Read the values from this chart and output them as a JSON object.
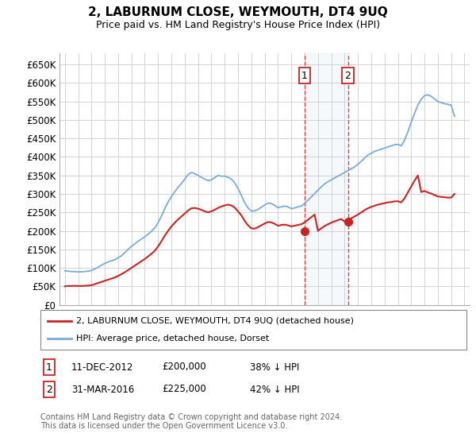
{
  "title": "2, LABURNUM CLOSE, WEYMOUTH, DT4 9UQ",
  "subtitle": "Price paid vs. HM Land Registry's House Price Index (HPI)",
  "ylabel_ticks": [
    "£0",
    "£50K",
    "£100K",
    "£150K",
    "£200K",
    "£250K",
    "£300K",
    "£350K",
    "£400K",
    "£450K",
    "£500K",
    "£550K",
    "£600K",
    "£650K"
  ],
  "ylim": [
    0,
    680000
  ],
  "ytick_values": [
    0,
    50000,
    100000,
    150000,
    200000,
    250000,
    300000,
    350000,
    400000,
    450000,
    500000,
    550000,
    600000,
    650000
  ],
  "hpi_color": "#7aabdb",
  "price_color": "#cc2222",
  "background_color": "#ffffff",
  "grid_color": "#cccccc",
  "marker1_price": 200000,
  "marker2_price": 225000,
  "transaction1": {
    "label": "1",
    "date": "11-DEC-2012",
    "price": "£200,000",
    "pct": "38% ↓ HPI"
  },
  "transaction2": {
    "label": "2",
    "date": "31-MAR-2016",
    "price": "£225,000",
    "pct": "42% ↓ HPI"
  },
  "legend_line1": "2, LABURNUM CLOSE, WEYMOUTH, DT4 9UQ (detached house)",
  "legend_line2": "HPI: Average price, detached house, Dorset",
  "footer": "Contains HM Land Registry data © Crown copyright and database right 2024.\nThis data is licensed under the Open Government Licence v3.0.",
  "hpi_data": {
    "years": [
      1995,
      1995.25,
      1995.5,
      1995.75,
      1996,
      1996.25,
      1996.5,
      1996.75,
      1997,
      1997.25,
      1997.5,
      1997.75,
      1998,
      1998.25,
      1998.5,
      1998.75,
      1999,
      1999.25,
      1999.5,
      1999.75,
      2000,
      2000.25,
      2000.5,
      2000.75,
      2001,
      2001.25,
      2001.5,
      2001.75,
      2002,
      2002.25,
      2002.5,
      2002.75,
      2003,
      2003.25,
      2003.5,
      2003.75,
      2004,
      2004.25,
      2004.5,
      2004.75,
      2005,
      2005.25,
      2005.5,
      2005.75,
      2006,
      2006.25,
      2006.5,
      2006.75,
      2007,
      2007.25,
      2007.5,
      2007.75,
      2008,
      2008.25,
      2008.5,
      2008.75,
      2009,
      2009.25,
      2009.5,
      2009.75,
      2010,
      2010.25,
      2010.5,
      2010.75,
      2011,
      2011.25,
      2011.5,
      2011.75,
      2012,
      2012.25,
      2012.5,
      2012.75,
      2013,
      2013.25,
      2013.5,
      2013.75,
      2014,
      2014.25,
      2014.5,
      2014.75,
      2015,
      2015.25,
      2015.5,
      2015.75,
      2016,
      2016.25,
      2016.5,
      2016.75,
      2017,
      2017.25,
      2017.5,
      2017.75,
      2018,
      2018.25,
      2018.5,
      2018.75,
      2019,
      2019.25,
      2019.5,
      2019.75,
      2020,
      2020.25,
      2020.5,
      2020.75,
      2021,
      2021.25,
      2021.5,
      2021.75,
      2022,
      2022.25,
      2022.5,
      2022.75,
      2023,
      2023.25,
      2023.5,
      2023.75,
      2024,
      2024.25
    ],
    "values": [
      92000,
      91000,
      90000,
      90000,
      89000,
      89500,
      90000,
      91000,
      93000,
      97000,
      102000,
      107000,
      112000,
      116000,
      119000,
      122000,
      127000,
      133000,
      141000,
      150000,
      158000,
      165000,
      172000,
      178000,
      184000,
      191000,
      199000,
      208000,
      222000,
      240000,
      260000,
      278000,
      293000,
      306000,
      318000,
      328000,
      340000,
      352000,
      358000,
      355000,
      350000,
      345000,
      340000,
      336000,
      338000,
      344000,
      350000,
      348000,
      348000,
      345000,
      340000,
      330000,
      315000,
      296000,
      276000,
      262000,
      254000,
      254000,
      258000,
      264000,
      270000,
      275000,
      274000,
      269000,
      263000,
      265000,
      267000,
      265000,
      260000,
      262000,
      265000,
      267000,
      274000,
      283000,
      292000,
      301000,
      310000,
      319000,
      327000,
      333000,
      338000,
      343000,
      348000,
      353000,
      358000,
      363000,
      368000,
      373000,
      380000,
      388000,
      397000,
      405000,
      410000,
      415000,
      418000,
      421000,
      424000,
      427000,
      430000,
      433000,
      434000,
      430000,
      445000,
      468000,
      494000,
      518000,
      540000,
      556000,
      566000,
      568000,
      564000,
      557000,
      550000,
      547000,
      544000,
      542000,
      540000,
      510000
    ]
  },
  "price_data": {
    "years": [
      1995,
      1995.25,
      1995.5,
      1995.75,
      1996,
      1996.25,
      1996.5,
      1996.75,
      1997,
      1997.25,
      1997.5,
      1997.75,
      1998,
      1998.25,
      1998.5,
      1998.75,
      1999,
      1999.25,
      1999.5,
      1999.75,
      2000,
      2000.25,
      2000.5,
      2000.75,
      2001,
      2001.25,
      2001.5,
      2001.75,
      2002,
      2002.25,
      2002.5,
      2002.75,
      2003,
      2003.25,
      2003.5,
      2003.75,
      2004,
      2004.25,
      2004.5,
      2004.75,
      2005,
      2005.25,
      2005.5,
      2005.75,
      2006,
      2006.25,
      2006.5,
      2006.75,
      2007,
      2007.25,
      2007.5,
      2007.75,
      2008,
      2008.25,
      2008.5,
      2008.75,
      2009,
      2009.25,
      2009.5,
      2009.75,
      2010,
      2010.25,
      2010.5,
      2010.75,
      2011,
      2011.25,
      2011.5,
      2011.75,
      2012,
      2012.25,
      2012.5,
      2012.75,
      2013,
      2013.25,
      2013.5,
      2013.75,
      2014,
      2014.25,
      2014.5,
      2014.75,
      2015,
      2015.25,
      2015.5,
      2015.75,
      2016,
      2016.25,
      2016.5,
      2016.75,
      2017,
      2017.25,
      2017.5,
      2017.75,
      2018,
      2018.25,
      2018.5,
      2018.75,
      2019,
      2019.25,
      2019.5,
      2019.75,
      2020,
      2020.25,
      2020.5,
      2020.75,
      2021,
      2021.25,
      2021.5,
      2021.75,
      2022,
      2022.25,
      2022.5,
      2022.75,
      2023,
      2023.25,
      2023.5,
      2023.75,
      2024,
      2024.25
    ],
    "values": [
      50000,
      51000,
      51000,
      51500,
      51000,
      51000,
      51500,
      52000,
      53000,
      56000,
      59000,
      62000,
      65000,
      68000,
      71000,
      74000,
      78000,
      83000,
      88000,
      94000,
      100000,
      106000,
      112000,
      118000,
      124000,
      131000,
      138000,
      146000,
      158000,
      172000,
      187000,
      200000,
      212000,
      222000,
      231000,
      239000,
      247000,
      255000,
      261000,
      262000,
      260000,
      257000,
      253000,
      250000,
      253000,
      257000,
      262000,
      266000,
      269000,
      271000,
      269000,
      263000,
      253000,
      242000,
      227000,
      215000,
      207000,
      206000,
      210000,
      215000,
      220000,
      224000,
      223000,
      219000,
      214000,
      216000,
      217000,
      215000,
      212000,
      214000,
      216000,
      218000,
      223000,
      230000,
      237000,
      244000,
      200000,
      207000,
      213000,
      218000,
      222000,
      226000,
      229000,
      232000,
      225000,
      229000,
      234000,
      239000,
      244000,
      250000,
      256000,
      261000,
      265000,
      268000,
      271000,
      273000,
      275000,
      277000,
      278000,
      280000,
      280000,
      277000,
      288000,
      304000,
      320000,
      336000,
      350000,
      305000,
      308000,
      304000,
      301000,
      297000,
      293000,
      292000,
      291000,
      290000,
      290000,
      300000
    ]
  },
  "marker1_year": 2013.0,
  "marker2_year": 2016.25,
  "xlim_left": 1994.6,
  "xlim_right": 2025.4
}
